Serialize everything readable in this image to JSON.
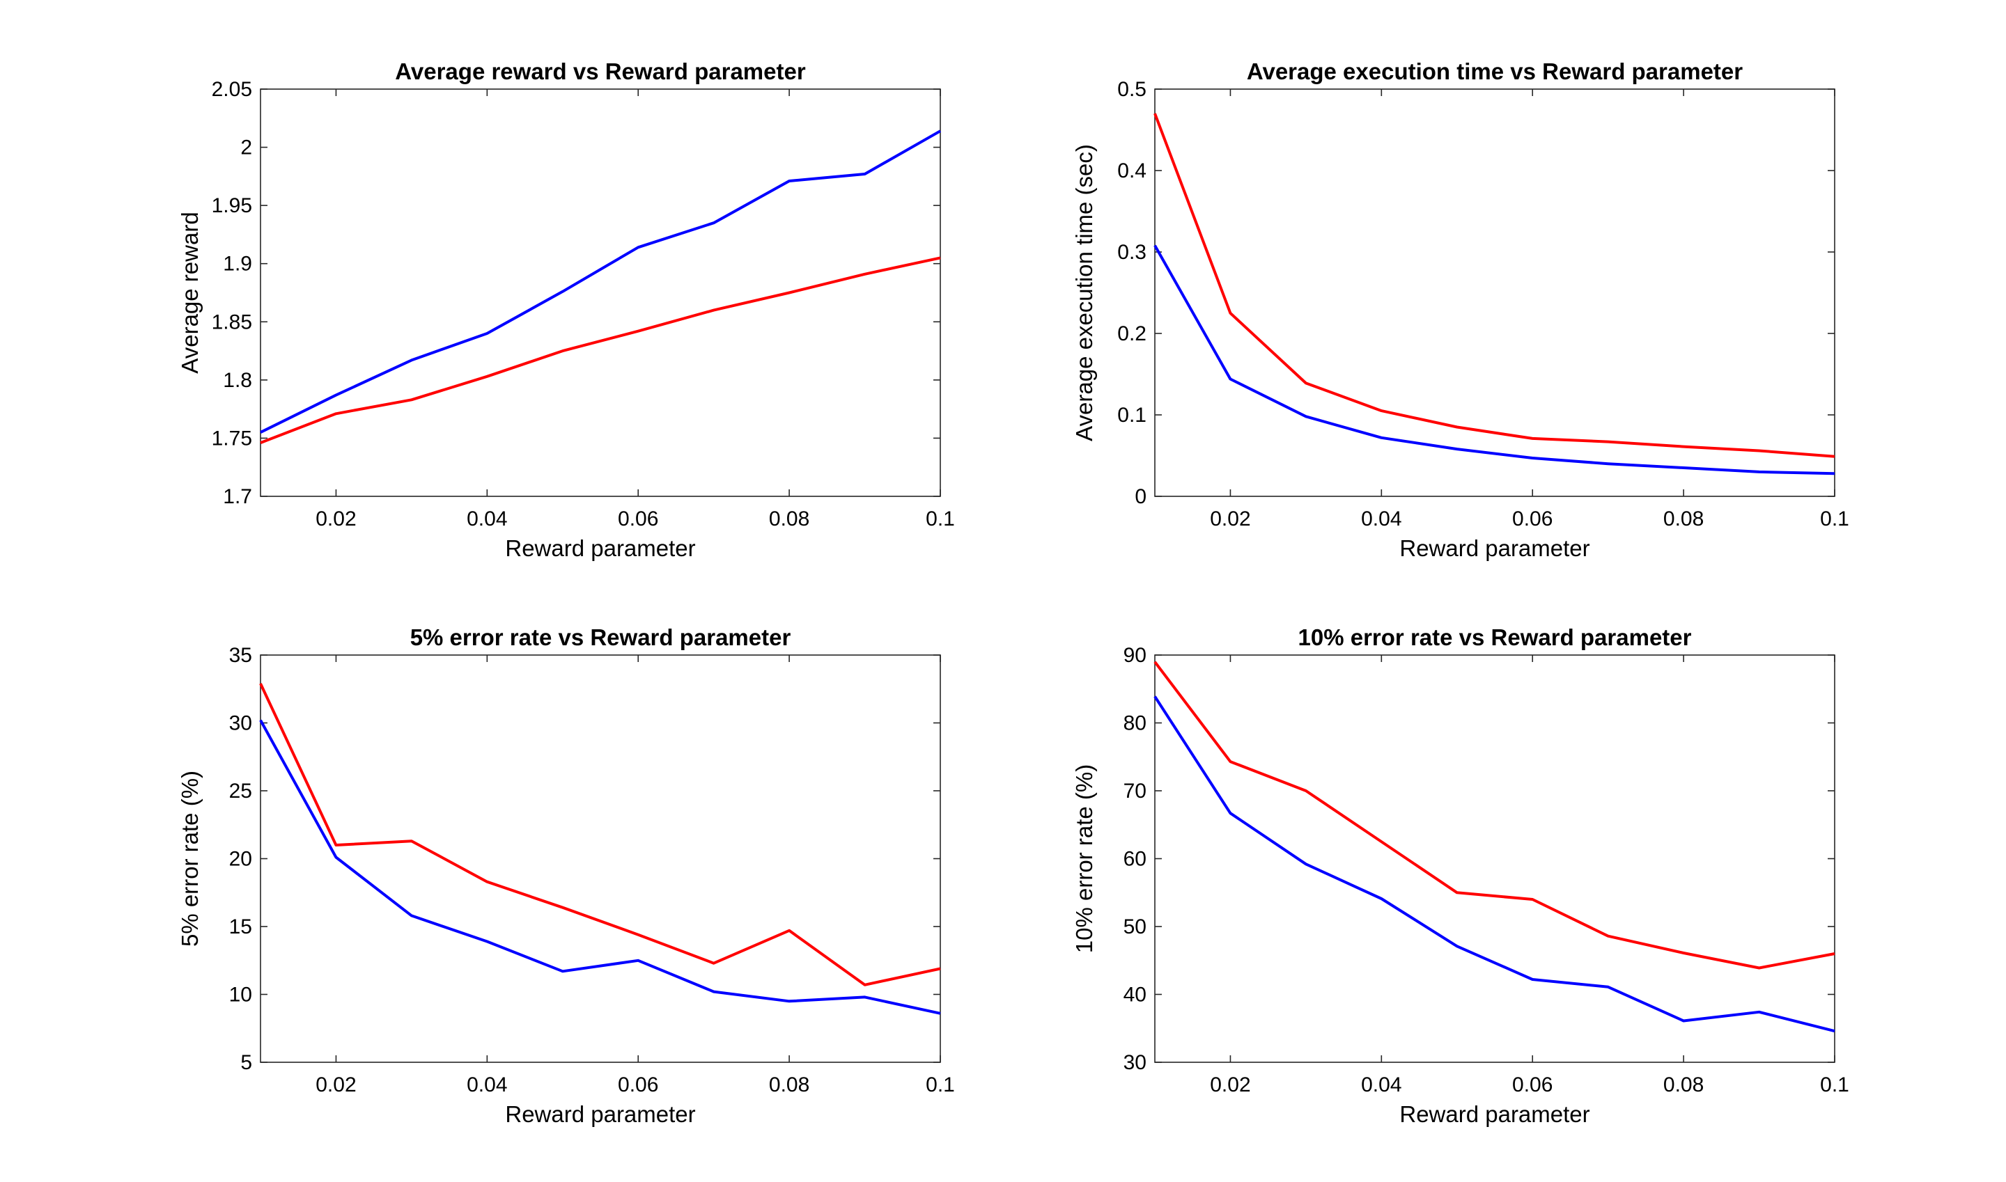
{
  "figure": {
    "background": "#ffffff",
    "axis_color": "#262626",
    "series_colors": [
      "#0000ff",
      "#ff0000"
    ]
  },
  "chart_data": [
    {
      "type": "line",
      "title": "Average reward vs Reward parameter",
      "xlabel": "Reward parameter",
      "ylabel": "Average reward",
      "xlim": [
        0.01,
        0.1
      ],
      "ylim": [
        1.7,
        2.05
      ],
      "xticks": [
        0.02,
        0.04,
        0.06,
        0.08,
        0.1
      ],
      "xtick_labels": [
        "0.02",
        "0.04",
        "0.06",
        "0.08",
        "0.1"
      ],
      "yticks": [
        1.7,
        1.75,
        1.8,
        1.85,
        1.9,
        1.95,
        2,
        2.05
      ],
      "ytick_labels": [
        "1.7",
        "1.75",
        "1.8",
        "1.85",
        "1.9",
        "1.95",
        "2",
        "2.05"
      ],
      "grid": false,
      "x": [
        0.01,
        0.02,
        0.03,
        0.04,
        0.05,
        0.06,
        0.07,
        0.08,
        0.09,
        0.1
      ],
      "series": [
        {
          "color": "#0000ff",
          "values": [
            1.755,
            1.787,
            1.817,
            1.84,
            1.876,
            1.914,
            1.935,
            1.971,
            1.977,
            2.014
          ]
        },
        {
          "color": "#ff0000",
          "values": [
            1.746,
            1.771,
            1.783,
            1.803,
            1.825,
            1.842,
            1.86,
            1.875,
            1.891,
            1.905
          ]
        }
      ]
    },
    {
      "type": "line",
      "title": "Average execution time vs Reward parameter",
      "xlabel": "Reward parameter",
      "ylabel": "Average execution time (sec)",
      "xlim": [
        0.01,
        0.1
      ],
      "ylim": [
        0,
        0.5
      ],
      "xticks": [
        0.02,
        0.04,
        0.06,
        0.08,
        0.1
      ],
      "xtick_labels": [
        "0.02",
        "0.04",
        "0.06",
        "0.08",
        "0.1"
      ],
      "yticks": [
        0,
        0.1,
        0.2,
        0.3,
        0.4,
        0.5
      ],
      "ytick_labels": [
        "0",
        "0.1",
        "0.2",
        "0.3",
        "0.4",
        "0.5"
      ],
      "grid": false,
      "x": [
        0.01,
        0.02,
        0.03,
        0.04,
        0.05,
        0.06,
        0.07,
        0.08,
        0.09,
        0.1
      ],
      "series": [
        {
          "color": "#0000ff",
          "values": [
            0.308,
            0.144,
            0.098,
            0.072,
            0.058,
            0.047,
            0.04,
            0.035,
            0.03,
            0.028
          ]
        },
        {
          "color": "#ff0000",
          "values": [
            0.47,
            0.225,
            0.139,
            0.105,
            0.085,
            0.071,
            0.067,
            0.061,
            0.056,
            0.049
          ]
        }
      ]
    },
    {
      "type": "line",
      "title": "5% error rate vs Reward parameter",
      "xlabel": "Reward parameter",
      "ylabel": "5% error rate (%)",
      "xlim": [
        0.01,
        0.1
      ],
      "ylim": [
        5,
        35
      ],
      "xticks": [
        0.02,
        0.04,
        0.06,
        0.08,
        0.1
      ],
      "xtick_labels": [
        "0.02",
        "0.04",
        "0.06",
        "0.08",
        "0.1"
      ],
      "yticks": [
        5,
        10,
        15,
        20,
        25,
        30,
        35
      ],
      "ytick_labels": [
        "5",
        "10",
        "15",
        "20",
        "25",
        "30",
        "35"
      ],
      "grid": false,
      "x": [
        0.01,
        0.02,
        0.03,
        0.04,
        0.05,
        0.06,
        0.07,
        0.08,
        0.09,
        0.1
      ],
      "series": [
        {
          "color": "#0000ff",
          "values": [
            30.2,
            20.1,
            15.8,
            13.9,
            11.7,
            12.5,
            10.2,
            9.5,
            9.8,
            8.6
          ]
        },
        {
          "color": "#ff0000",
          "values": [
            32.9,
            21.0,
            21.3,
            18.3,
            16.4,
            14.4,
            12.3,
            14.7,
            10.7,
            11.9
          ]
        }
      ]
    },
    {
      "type": "line",
      "title": "10% error rate vs Reward parameter",
      "xlabel": "Reward parameter",
      "ylabel": "10% error rate (%)",
      "xlim": [
        0.01,
        0.1
      ],
      "ylim": [
        30,
        90
      ],
      "xticks": [
        0.02,
        0.04,
        0.06,
        0.08,
        0.1
      ],
      "xtick_labels": [
        "0.02",
        "0.04",
        "0.06",
        "0.08",
        "0.1"
      ],
      "yticks": [
        30,
        40,
        50,
        60,
        70,
        80,
        90
      ],
      "ytick_labels": [
        "30",
        "40",
        "50",
        "60",
        "70",
        "80",
        "90"
      ],
      "grid": false,
      "x": [
        0.01,
        0.02,
        0.03,
        0.04,
        0.05,
        0.06,
        0.07,
        0.08,
        0.09,
        0.1
      ],
      "series": [
        {
          "color": "#0000ff",
          "values": [
            83.9,
            66.7,
            59.2,
            54.1,
            47.1,
            42.2,
            41.1,
            36.1,
            37.4,
            34.6
          ]
        },
        {
          "color": "#ff0000",
          "values": [
            89.0,
            74.3,
            70.0,
            62.5,
            55.0,
            54.0,
            48.6,
            46.1,
            43.9,
            46.0
          ]
        }
      ]
    }
  ]
}
